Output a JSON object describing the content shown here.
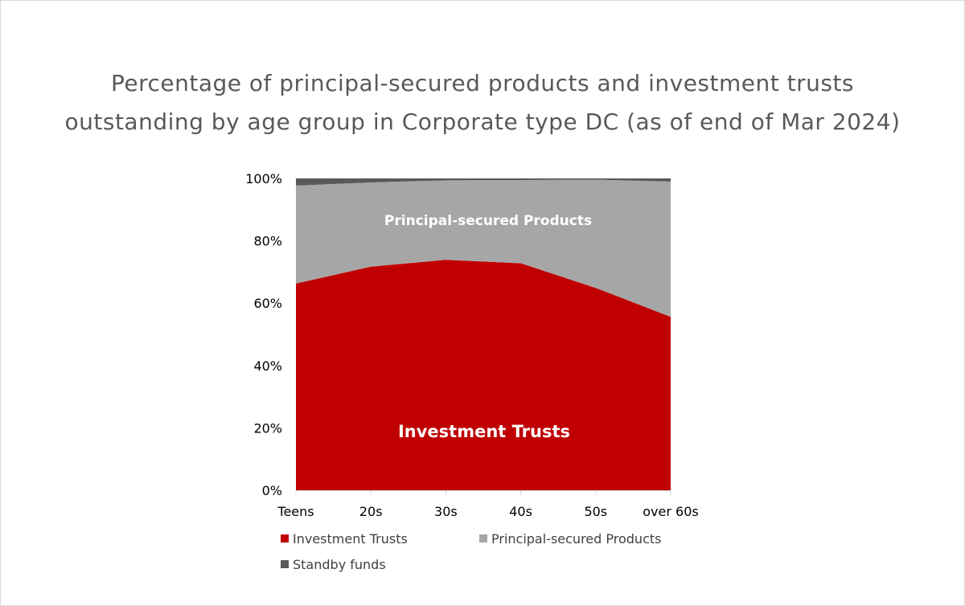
{
  "title": {
    "line1": "Percentage of principal-secured products and investment trusts",
    "line2": "outstanding by age group in Corporate type DC (as of end of Mar 2024)"
  },
  "chart_data": {
    "type": "area",
    "stacked": true,
    "categories": [
      "Teens",
      "20s",
      "30s",
      "40s",
      "50s",
      "over 60s"
    ],
    "ylim": [
      0,
      100
    ],
    "y_ticks": [
      "0%",
      "20%",
      "40%",
      "60%",
      "80%",
      "100%"
    ],
    "series": [
      {
        "name": "Investment Trusts",
        "values": [
          66.3,
          71.7,
          73.9,
          72.8,
          64.9,
          55.6
        ],
        "color": "#c00000",
        "inline_label": "Investment Trusts"
      },
      {
        "name": "Principal-secured Products",
        "values": [
          31.4,
          27.0,
          25.5,
          26.7,
          34.7,
          43.4
        ],
        "color": "#a6a6a6",
        "inline_label": "Principal-secured  Products"
      },
      {
        "name": "Standby funds",
        "values": [
          2.3,
          1.3,
          0.6,
          0.5,
          0.4,
          1.0
        ],
        "color": "#595959"
      }
    ],
    "legend_position": "bottom",
    "grid": false
  }
}
